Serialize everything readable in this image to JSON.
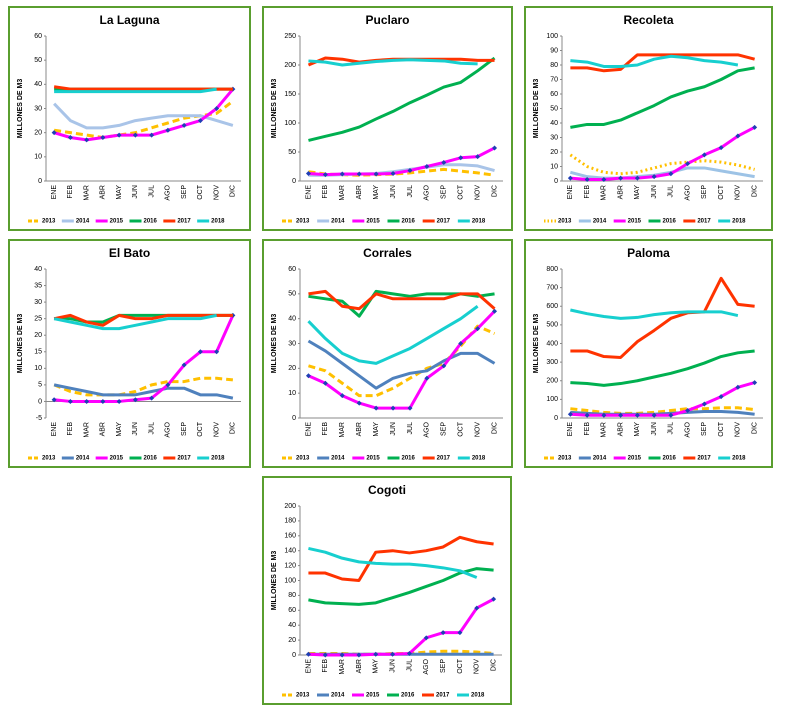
{
  "chart_data": [
    {
      "type": "line",
      "title": "La Laguna",
      "ylabel": "MILLONES DE M3",
      "categories": [
        "ENE",
        "FEB",
        "MAR",
        "ABR",
        "MAY",
        "JUN",
        "JUL",
        "AGO",
        "SEP",
        "OCT",
        "NOV",
        "DIC"
      ],
      "ylim": [
        0,
        60
      ],
      "yticks": [
        0,
        10,
        20,
        30,
        40,
        50,
        60
      ],
      "series": [
        {
          "name": "2013",
          "color": "#ffc000",
          "line_style": "dashed",
          "values": [
            21,
            20,
            19,
            18,
            19,
            20,
            22,
            24,
            26,
            27,
            28,
            33
          ]
        },
        {
          "name": "2014",
          "color": "#a9c4e8",
          "values": [
            32,
            25,
            22,
            22,
            23,
            25,
            26,
            27,
            27,
            27,
            25,
            23
          ]
        },
        {
          "name": "2015",
          "color": "#ff00ff",
          "marker": true,
          "values": [
            20,
            18,
            17,
            18,
            19,
            19,
            19,
            21,
            23,
            25,
            30,
            38
          ]
        },
        {
          "name": "2016",
          "color": "#00b050",
          "values": [
            38,
            38,
            38,
            38,
            38,
            38,
            38,
            38,
            38,
            38,
            38,
            38
          ]
        },
        {
          "name": "2017",
          "color": "#ff3300",
          "values": [
            39,
            38,
            38,
            38,
            38,
            38,
            38,
            38,
            38,
            38,
            38,
            38
          ]
        },
        {
          "name": "2018",
          "color": "#17cfcf",
          "values": [
            37,
            37,
            37,
            37,
            37,
            37,
            37,
            37,
            37,
            37,
            38,
            null
          ]
        }
      ]
    },
    {
      "type": "line",
      "title": "Puclaro",
      "ylabel": "MILLONES DE M3",
      "categories": [
        "ENE",
        "FEB",
        "MAR",
        "ABR",
        "MAY",
        "JUN",
        "JUL",
        "AGO",
        "SEP",
        "OCT",
        "NOV",
        "DIC"
      ],
      "ylim": [
        0,
        250
      ],
      "yticks": [
        0,
        50,
        100,
        150,
        200,
        250
      ],
      "series": [
        {
          "name": "2013",
          "color": "#ffc000",
          "line_style": "dashed",
          "values": [
            16,
            12,
            11,
            10,
            11,
            12,
            14,
            17,
            20,
            17,
            14,
            10
          ]
        },
        {
          "name": "2014",
          "color": "#a9c4e8",
          "values": [
            10,
            10,
            11,
            12,
            13,
            16,
            20,
            24,
            28,
            28,
            26,
            18
          ]
        },
        {
          "name": "2015",
          "color": "#ff00ff",
          "marker": true,
          "values": [
            13,
            11,
            12,
            12,
            12,
            13,
            18,
            25,
            32,
            40,
            42,
            57
          ]
        },
        {
          "name": "2016",
          "color": "#00b050",
          "values": [
            70,
            77,
            84,
            93,
            107,
            120,
            135,
            148,
            162,
            170,
            190,
            212
          ]
        },
        {
          "name": "2017",
          "color": "#ff3300",
          "values": [
            200,
            212,
            210,
            205,
            208,
            210,
            210,
            210,
            210,
            210,
            208,
            208
          ]
        },
        {
          "name": "2018",
          "color": "#17cfcf",
          "values": [
            207,
            205,
            200,
            203,
            206,
            208,
            209,
            208,
            207,
            203,
            202,
            null
          ]
        }
      ]
    },
    {
      "type": "line",
      "title": "Recoleta",
      "ylabel": "MILLONES DE M3",
      "categories": [
        "ENE",
        "FEB",
        "MAR",
        "ABR",
        "MAY",
        "JUN",
        "JUL",
        "AGO",
        "SEP",
        "OCT",
        "NOV",
        "DIC"
      ],
      "ylim": [
        0,
        100
      ],
      "yticks": [
        0,
        10,
        20,
        30,
        40,
        50,
        60,
        70,
        80,
        90,
        100
      ],
      "series": [
        {
          "name": "2013",
          "color": "#ffc000",
          "line_style": "dotted",
          "values": [
            18,
            10,
            6,
            5,
            6,
            9,
            12,
            13,
            14,
            13,
            11,
            8
          ]
        },
        {
          "name": "2014",
          "color": "#9dc3e6",
          "values": [
            6,
            3,
            2,
            2,
            3,
            4,
            6,
            9,
            9,
            7,
            5,
            3
          ]
        },
        {
          "name": "2015",
          "color": "#ff00ff",
          "marker": true,
          "values": [
            2,
            1,
            1,
            2,
            2,
            3,
            5,
            12,
            18,
            23,
            31,
            37
          ]
        },
        {
          "name": "2016",
          "color": "#00b050",
          "values": [
            37,
            39,
            39,
            42,
            47,
            52,
            58,
            62,
            65,
            70,
            76,
            78
          ]
        },
        {
          "name": "2017",
          "color": "#ff3300",
          "values": [
            78,
            78,
            76,
            77,
            87,
            87,
            87,
            87,
            87,
            87,
            87,
            84
          ]
        },
        {
          "name": "2018",
          "color": "#17cfcf",
          "values": [
            83,
            82,
            79,
            79,
            80,
            84,
            86,
            85,
            83,
            82,
            80,
            null
          ]
        }
      ]
    },
    {
      "type": "line",
      "title": "El Bato",
      "ylabel": "MILLONES DE M3",
      "categories": [
        "ENE",
        "FEB",
        "MAR",
        "ABR",
        "MAY",
        "JUN",
        "JUL",
        "AGO",
        "SEP",
        "OCT",
        "NOV",
        "DIC"
      ],
      "ylim": [
        -5,
        40
      ],
      "yticks": [
        -5,
        0,
        5,
        10,
        15,
        20,
        25,
        30,
        35,
        40
      ],
      "series": [
        {
          "name": "2013",
          "color": "#ffc000",
          "line_style": "dashed",
          "values": [
            5,
            3,
            2,
            2,
            2,
            3,
            5,
            6,
            6,
            7,
            7,
            6.5
          ]
        },
        {
          "name": "2014",
          "color": "#4f81bd",
          "values": [
            5,
            4,
            3,
            2,
            2,
            2,
            3,
            4,
            4,
            2,
            2,
            1
          ]
        },
        {
          "name": "2015",
          "color": "#ff00ff",
          "marker": true,
          "values": [
            0.5,
            0,
            0,
            0,
            0,
            0.5,
            1,
            5,
            11,
            15,
            15,
            26
          ]
        },
        {
          "name": "2016",
          "color": "#00b050",
          "values": [
            25,
            25,
            24,
            24,
            26,
            26,
            26,
            26,
            26,
            26,
            26,
            26
          ]
        },
        {
          "name": "2017",
          "color": "#ff3300",
          "values": [
            25,
            26,
            24,
            23,
            26,
            25,
            25,
            26,
            26,
            26,
            26,
            26
          ]
        },
        {
          "name": "2018",
          "color": "#17cfcf",
          "values": [
            25,
            24,
            23,
            22,
            22,
            23,
            24,
            25,
            25,
            25,
            26,
            null
          ]
        }
      ]
    },
    {
      "type": "line",
      "title": "Corrales",
      "ylabel": "MILLONES DE M3",
      "categories": [
        "ENE",
        "FEB",
        "MAR",
        "ABR",
        "MAY",
        "JUN",
        "JUL",
        "AGO",
        "SEP",
        "OCT",
        "NOV",
        "DIC"
      ],
      "ylim": [
        0,
        60
      ],
      "yticks": [
        0,
        10,
        20,
        30,
        40,
        50,
        60
      ],
      "series": [
        {
          "name": "2013",
          "color": "#ffc000",
          "line_style": "dashed",
          "values": [
            21,
            19,
            14,
            9,
            9,
            12,
            16,
            20,
            22,
            29,
            37,
            34
          ]
        },
        {
          "name": "2014",
          "color": "#4f81bd",
          "values": [
            31,
            27,
            22,
            17,
            12,
            16,
            18,
            19,
            23,
            26,
            26,
            22
          ]
        },
        {
          "name": "2015",
          "color": "#ff00ff",
          "marker": true,
          "values": [
            17,
            14,
            9,
            6,
            4,
            4,
            4,
            16,
            21,
            30,
            36,
            43
          ]
        },
        {
          "name": "2016",
          "color": "#00b050",
          "values": [
            49,
            48,
            47,
            41,
            51,
            50,
            49,
            50,
            50,
            50,
            49,
            50
          ]
        },
        {
          "name": "2017",
          "color": "#ff3300",
          "values": [
            50,
            51,
            45,
            44,
            50,
            48,
            48,
            48,
            48,
            50,
            50,
            44
          ]
        },
        {
          "name": "2018",
          "color": "#17cfcf",
          "values": [
            39,
            32,
            26,
            23,
            22,
            25,
            28,
            32,
            36,
            40,
            45,
            null
          ]
        }
      ]
    },
    {
      "type": "line",
      "title": "Paloma",
      "ylabel": "MILLONES DE M3",
      "categories": [
        "ENE",
        "FEB",
        "MAR",
        "ABR",
        "MAY",
        "JUN",
        "JUL",
        "AGO",
        "SEP",
        "OCT",
        "NOV",
        "DIC"
      ],
      "ylim": [
        0,
        800
      ],
      "yticks": [
        0,
        100,
        200,
        300,
        400,
        500,
        600,
        700,
        800
      ],
      "series": [
        {
          "name": "2013",
          "color": "#ffc000",
          "line_style": "dashed",
          "values": [
            50,
            40,
            30,
            25,
            25,
            30,
            40,
            50,
            50,
            55,
            55,
            45
          ]
        },
        {
          "name": "2014",
          "color": "#4f81bd",
          "values": [
            30,
            25,
            20,
            20,
            20,
            20,
            25,
            30,
            35,
            35,
            30,
            20
          ]
        },
        {
          "name": "2015",
          "color": "#ff00ff",
          "marker": true,
          "values": [
            20,
            15,
            15,
            15,
            15,
            15,
            15,
            40,
            75,
            115,
            165,
            190
          ]
        },
        {
          "name": "2016",
          "color": "#00b050",
          "values": [
            190,
            185,
            175,
            185,
            200,
            220,
            240,
            265,
            295,
            330,
            350,
            360
          ]
        },
        {
          "name": "2017",
          "color": "#ff3300",
          "values": [
            360,
            360,
            330,
            325,
            410,
            470,
            535,
            565,
            570,
            750,
            610,
            600
          ]
        },
        {
          "name": "2018",
          "color": "#17cfcf",
          "values": [
            580,
            560,
            545,
            535,
            540,
            555,
            565,
            570,
            570,
            570,
            550,
            null
          ]
        }
      ]
    },
    {
      "type": "line",
      "title": "Cogoti",
      "ylabel": "MILLONES DE M3",
      "categories": [
        "ENE",
        "FEB",
        "MAR",
        "ABR",
        "MAY",
        "JUN",
        "JUL",
        "AGO",
        "SEP",
        "OCT",
        "NOV",
        "DIC"
      ],
      "ylim": [
        0,
        200
      ],
      "yticks": [
        0,
        20,
        40,
        60,
        80,
        100,
        120,
        140,
        160,
        180,
        200
      ],
      "series": [
        {
          "name": "2013",
          "color": "#ffc000",
          "line_style": "dashed",
          "values": [
            2,
            2,
            2,
            1,
            1,
            2,
            2,
            4,
            5,
            5,
            4,
            2
          ]
        },
        {
          "name": "2014",
          "color": "#4f81bd",
          "values": [
            1,
            1,
            1,
            1,
            1,
            1,
            1,
            1,
            1,
            1,
            1,
            1
          ]
        },
        {
          "name": "2015",
          "color": "#ff00ff",
          "marker": true,
          "values": [
            1,
            0,
            0,
            0,
            1,
            1,
            2,
            23,
            30,
            30,
            63,
            75
          ]
        },
        {
          "name": "2016",
          "color": "#00b050",
          "values": [
            74,
            70,
            69,
            68,
            70,
            77,
            84,
            92,
            100,
            110,
            116,
            114
          ]
        },
        {
          "name": "2017",
          "color": "#ff3300",
          "values": [
            110,
            110,
            102,
            100,
            138,
            140,
            137,
            140,
            145,
            158,
            152,
            149
          ]
        },
        {
          "name": "2018",
          "color": "#17cfcf",
          "values": [
            143,
            138,
            130,
            125,
            123,
            122,
            122,
            120,
            117,
            113,
            104,
            null
          ]
        }
      ]
    }
  ]
}
